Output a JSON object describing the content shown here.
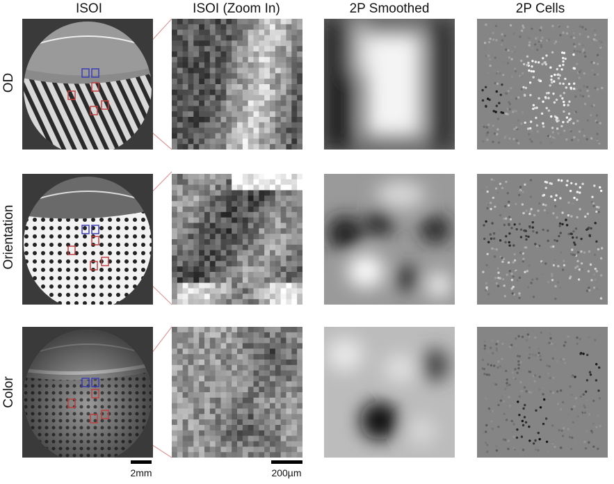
{
  "columns": [
    "ISOI",
    "ISOI (Zoom In)",
    "2P Smoothed",
    "2P Cells"
  ],
  "rows": [
    "OD",
    "Orientation",
    "Color"
  ],
  "scale": {
    "isoi": "2mm",
    "zoom": "200µm"
  },
  "colors": {
    "roi_blue": "#3a3ab8",
    "roi_red": "#c04040",
    "connector": "#d99a9a",
    "cells_bg": "#858585"
  }
}
